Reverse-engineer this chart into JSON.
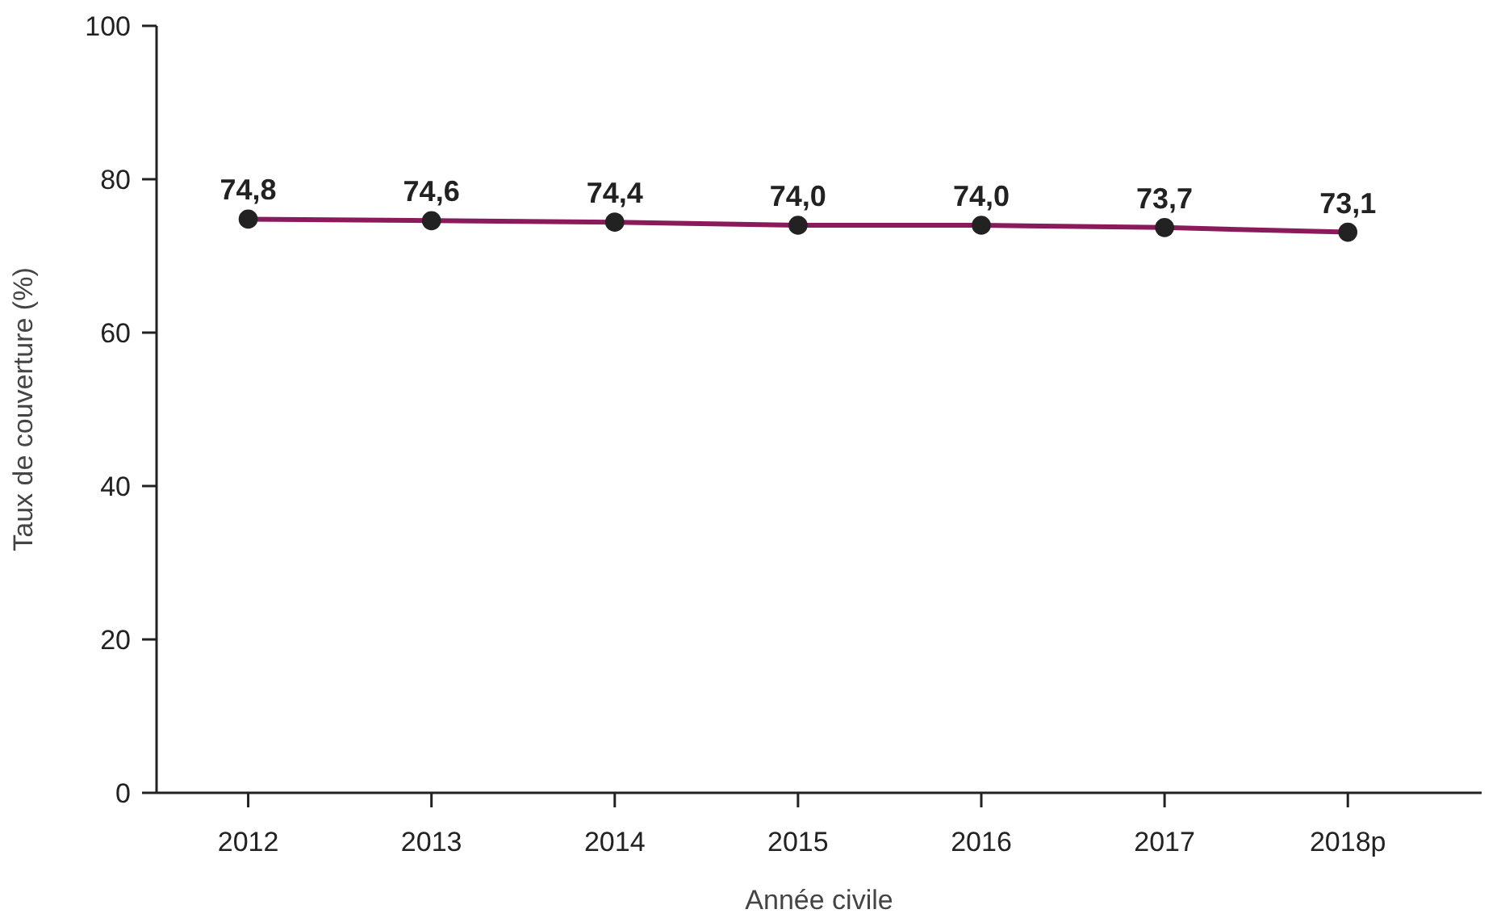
{
  "chart_data": {
    "type": "line",
    "xlabel": "Année civile",
    "ylabel": "Taux de couverture (%)",
    "categories": [
      "2012",
      "2013",
      "2014",
      "2015",
      "2016",
      "2017",
      "2018p"
    ],
    "series": [
      {
        "color": "#8b1a5c",
        "values": [
          74.8,
          74.6,
          74.4,
          74.0,
          74.0,
          73.7,
          73.1
        ],
        "value_labels": [
          "74,8",
          "74,6",
          "74,4",
          "74,0",
          "74,0",
          "73,7",
          "73,1"
        ]
      }
    ],
    "ylim": [
      0,
      100
    ],
    "yticks": [
      0,
      20,
      40,
      60,
      80,
      100
    ],
    "marker": "circle",
    "line_style": "solid",
    "grid": false
  }
}
